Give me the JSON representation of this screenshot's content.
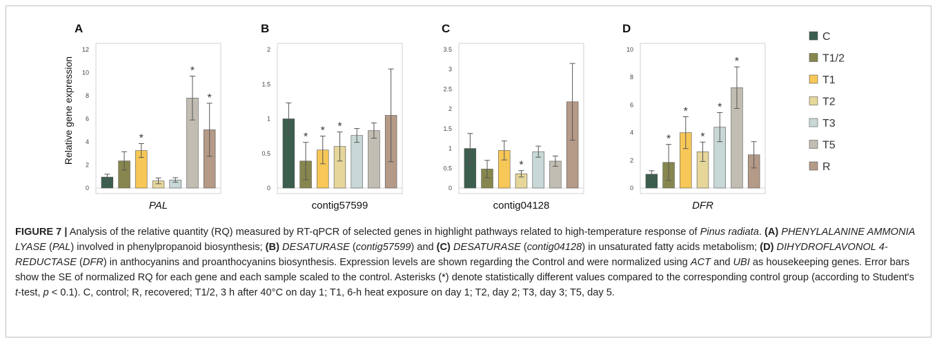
{
  "chart_data": [
    {
      "type": "bar",
      "panel": "A",
      "xlabel": "PAL",
      "xlabel_italic": true,
      "ylabel": "Relative gene expression",
      "ylim": [
        0,
        12
      ],
      "yticks": [
        "0",
        "2",
        "4",
        "6",
        "8",
        "10",
        "12"
      ],
      "series": [
        {
          "name": "C",
          "value": 0.95,
          "error": 0.25,
          "star": false
        },
        {
          "name": "T1/2",
          "value": 2.35,
          "error": 0.8,
          "star": false
        },
        {
          "name": "T1",
          "value": 3.25,
          "error": 0.6,
          "star": true
        },
        {
          "name": "T2",
          "value": 0.62,
          "error": 0.25,
          "star": false
        },
        {
          "name": "T3",
          "value": 0.7,
          "error": 0.2,
          "star": false
        },
        {
          "name": "T5",
          "value": 7.8,
          "error": 1.9,
          "star": true
        },
        {
          "name": "R",
          "value": 5.05,
          "error": 2.3,
          "star": true
        }
      ]
    },
    {
      "type": "bar",
      "panel": "B",
      "xlabel": "contig57599",
      "xlabel_italic": false,
      "ylim": [
        0,
        2
      ],
      "yticks": [
        "0",
        "0.5",
        "1",
        "1.5",
        "2"
      ],
      "series": [
        {
          "name": "C",
          "value": 1.0,
          "error": 0.23,
          "star": false
        },
        {
          "name": "T1/2",
          "value": 0.39,
          "error": 0.27,
          "star": true
        },
        {
          "name": "T1",
          "value": 0.55,
          "error": 0.2,
          "star": true
        },
        {
          "name": "T2",
          "value": 0.6,
          "error": 0.21,
          "star": true
        },
        {
          "name": "T3",
          "value": 0.76,
          "error": 0.1,
          "star": false
        },
        {
          "name": "T5",
          "value": 0.83,
          "error": 0.11,
          "star": false
        },
        {
          "name": "R",
          "value": 1.05,
          "error": 0.67,
          "star": false
        }
      ]
    },
    {
      "type": "bar",
      "panel": "C",
      "xlabel": "contig04128",
      "xlabel_italic": false,
      "ylim": [
        0,
        3.5
      ],
      "yticks": [
        "0",
        "0.5",
        "1",
        "1.5",
        "2",
        "2.5",
        "3",
        "3.5"
      ],
      "series": [
        {
          "name": "C",
          "value": 1.0,
          "error": 0.38,
          "star": false
        },
        {
          "name": "T1/2",
          "value": 0.48,
          "error": 0.22,
          "star": false
        },
        {
          "name": "T1",
          "value": 0.95,
          "error": 0.24,
          "star": false
        },
        {
          "name": "T2",
          "value": 0.36,
          "error": 0.08,
          "star": true
        },
        {
          "name": "T3",
          "value": 0.92,
          "error": 0.14,
          "star": false
        },
        {
          "name": "T5",
          "value": 0.68,
          "error": 0.13,
          "star": false
        },
        {
          "name": "R",
          "value": 2.18,
          "error": 0.97,
          "star": false
        }
      ]
    },
    {
      "type": "bar",
      "panel": "D",
      "xlabel": "DFR",
      "xlabel_italic": true,
      "ylim": [
        0,
        10
      ],
      "yticks": [
        "0",
        "2",
        "4",
        "6",
        "8",
        "10"
      ],
      "series": [
        {
          "name": "C",
          "value": 1.0,
          "error": 0.25,
          "star": false
        },
        {
          "name": "T1/2",
          "value": 1.85,
          "error": 1.3,
          "star": true
        },
        {
          "name": "T1",
          "value": 4.0,
          "error": 1.15,
          "star": true
        },
        {
          "name": "T2",
          "value": 2.62,
          "error": 0.7,
          "star": true
        },
        {
          "name": "T3",
          "value": 4.4,
          "error": 1.05,
          "star": true
        },
        {
          "name": "T5",
          "value": 7.25,
          "error": 1.5,
          "star": true
        },
        {
          "name": "R",
          "value": 2.4,
          "error": 0.95,
          "star": false
        }
      ]
    }
  ],
  "legend": [
    {
      "label": "C",
      "color": "#3c5e4e"
    },
    {
      "label": "T1/2",
      "color": "#86864e"
    },
    {
      "label": "T1",
      "color": "#f7c757"
    },
    {
      "label": "T2",
      "color": "#e6d69a"
    },
    {
      "label": "T3",
      "color": "#c7d8d6"
    },
    {
      "label": "T5",
      "color": "#c2bdb2"
    },
    {
      "label": "R",
      "color": "#b59a87"
    }
  ],
  "star_symbol": "*",
  "caption": {
    "heading": "FIGURE 7 |",
    "text1": " Analysis of the relative quantity (RQ) measured by RT-qPCR of selected genes in highlight pathways related to high-temperature response of ",
    "species": "Pinus radiata",
    "text2": ". ",
    "labelA": "(A)",
    "geneA": " PHENYLALANINE AMMONIA LYASE",
    "text3": " (",
    "geneA_short": "PAL",
    "text4": ") involved in phenylpropanoid biosynthesis; ",
    "labelB": "(B)",
    "geneB": " DESATURASE",
    "text5": " (",
    "geneB_contig": "contig57599",
    "text6": ") and ",
    "labelC": "(C)",
    "geneC": " DESATURASE",
    "text7": " (",
    "geneC_contig": "contig04128",
    "text8": ") in unsaturated fatty acids metabolism; ",
    "labelD": "(D)",
    "geneD": " DIHYDROFLAVONOL 4-REDUCTASE",
    "text9": " (",
    "geneD_short": "DFR",
    "text10": ") in anthocyanins and proanthocyanins biosynthesis. Expression levels are shown regarding the Control and were normalized using ",
    "act": "ACT",
    "text11": " and ",
    "ubi": "UBI",
    "text12": " as housekeeping genes. Error bars show the SE of normalized RQ for each gene and each sample scaled to the control. Asterisks (*) denote statistically different values compared to the corresponding control group (according to Student's ",
    "t": "t",
    "text13": "-test, ",
    "p": "p",
    "text14": " < 0.1). C, control; R, recovered; T1/2, 3 h after 40°C on day 1; T1, 6-h heat exposure on day 1; T2, day 2; T3, day 3; T5, day 5."
  }
}
